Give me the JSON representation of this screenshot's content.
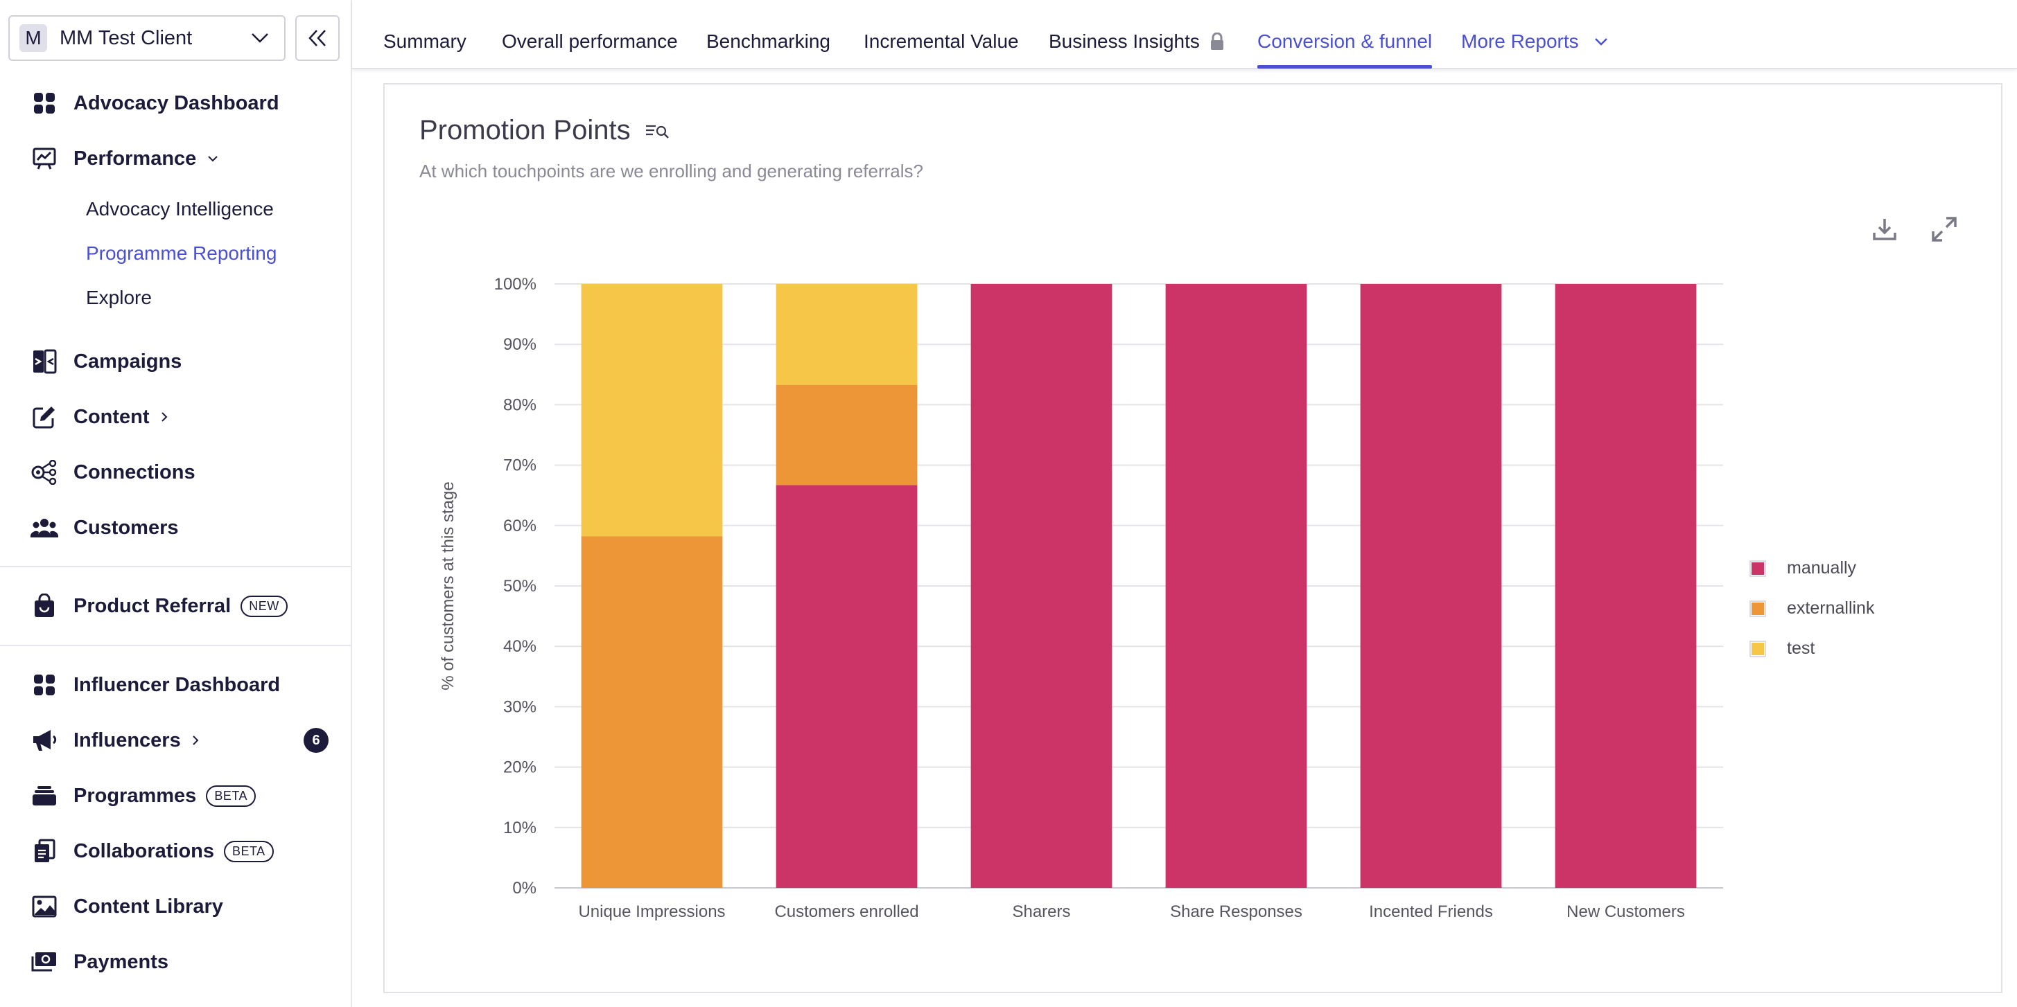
{
  "sidebar": {
    "client": {
      "initial": "M",
      "name": "MM Test Client"
    },
    "items": [
      {
        "label": "Advocacy Dashboard",
        "icon": "grid-icon"
      },
      {
        "label": "Performance",
        "icon": "chart-board-icon"
      },
      {
        "label": "Campaigns",
        "icon": "campaigns-icon"
      },
      {
        "label": "Content",
        "icon": "edit-icon"
      },
      {
        "label": "Connections",
        "icon": "connections-icon"
      },
      {
        "label": "Customers",
        "icon": "customers-icon"
      },
      {
        "label": "Product Referral",
        "icon": "shopping-bag-icon",
        "badge": "NEW"
      },
      {
        "label": "Influencer Dashboard",
        "icon": "grid-icon"
      },
      {
        "label": "Influencers",
        "icon": "megaphone-icon",
        "count": "6"
      },
      {
        "label": "Programmes",
        "icon": "stack-icon",
        "badge": "BETA"
      },
      {
        "label": "Collaborations",
        "icon": "clipboard-icon",
        "badge": "BETA"
      },
      {
        "label": "Content Library",
        "icon": "image-icon"
      },
      {
        "label": "Payments",
        "icon": "payments-icon"
      }
    ],
    "performance_sub": [
      "Advocacy Intelligence",
      "Programme Reporting",
      "Explore"
    ]
  },
  "tabs": [
    {
      "label": "Summary"
    },
    {
      "label": "Overall performance"
    },
    {
      "label": "Benchmarking"
    },
    {
      "label": "Incremental Value"
    },
    {
      "label": "Business Insights"
    },
    {
      "label": "Conversion & funnel"
    },
    {
      "label": "More Reports"
    }
  ],
  "card": {
    "title": "Promotion Points",
    "subtitle": "At which touchpoints are we enrolling and generating referrals?"
  },
  "chart_data": {
    "type": "bar",
    "stacked": true,
    "categories": [
      "Unique Impressions",
      "Customers enrolled",
      "Sharers",
      "Share Responses",
      "Incented Friends",
      "New Customers"
    ],
    "series": [
      {
        "name": "manually",
        "color": "#cc3366",
        "values": [
          0,
          66.7,
          100,
          100,
          100,
          100
        ]
      },
      {
        "name": "externallink",
        "color": "#ec9637",
        "values": [
          58.2,
          16.6,
          0,
          0,
          0,
          0
        ]
      },
      {
        "name": "test",
        "color": "#f5c648",
        "values": [
          41.8,
          16.7,
          0,
          0,
          0,
          0
        ]
      }
    ],
    "ylabel": "% of customers at this stage",
    "ylim": [
      0,
      100
    ],
    "yticks": [
      "0%",
      "10%",
      "20%",
      "30%",
      "40%",
      "50%",
      "60%",
      "70%",
      "80%",
      "90%",
      "100%"
    ],
    "grid": true,
    "legend": "right"
  },
  "colors": {
    "accent": "#4a4fd6",
    "text": "#1d1b3a"
  }
}
